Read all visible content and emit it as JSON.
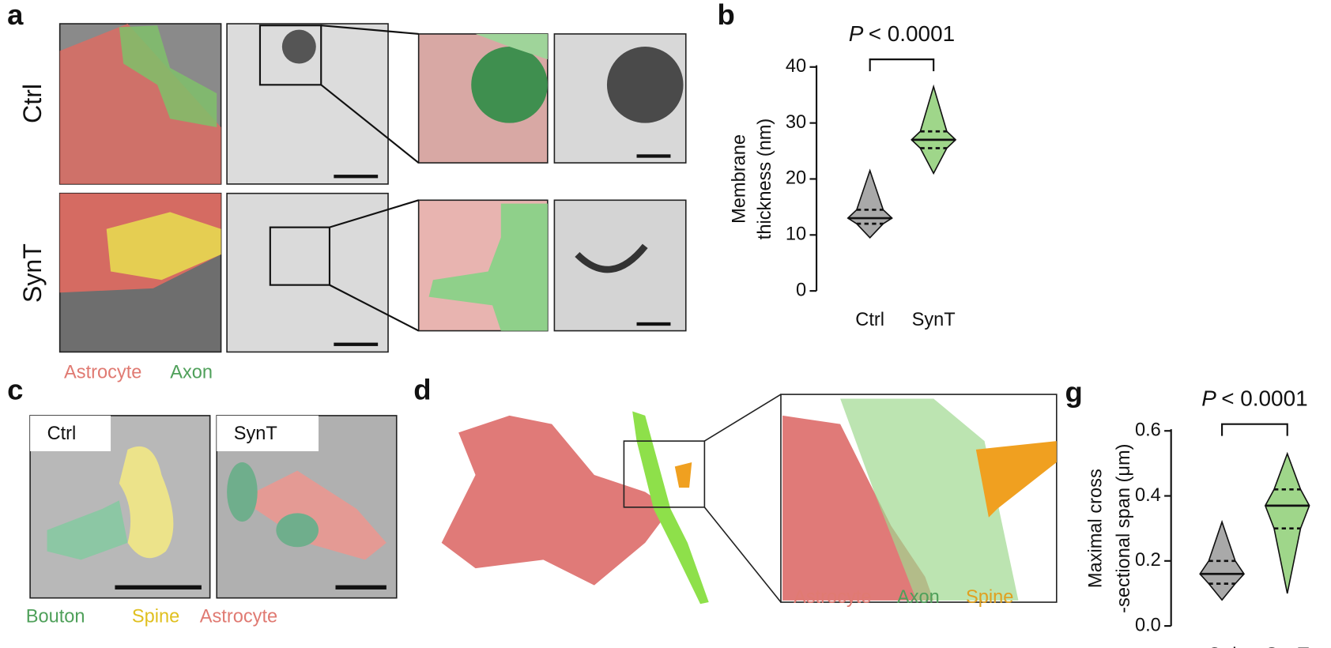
{
  "panel_labels": {
    "a": "a",
    "b": "b",
    "c": "c",
    "d": "d",
    "g": "g"
  },
  "panel_a": {
    "rows": [
      "Ctrl",
      "SynT"
    ],
    "legend": [
      "Astrocyte",
      "Axon"
    ]
  },
  "panel_c": {
    "images": [
      "Ctrl",
      "SynT"
    ],
    "legend": [
      "Bouton",
      "Spine",
      "Astrocyte"
    ]
  },
  "panel_d": {
    "legend": [
      "Astrocyte",
      "Axon",
      "Spine"
    ]
  },
  "chart_data": [
    {
      "type": "violin",
      "ylabel": [
        "Membrane",
        "thickness (nm)"
      ],
      "annotation_symbol": "P",
      "annotation_text": "< 0.0001",
      "categories": [
        "Ctrl",
        "SynT"
      ],
      "colors": [
        "#a9a9a9",
        "#9fd68a"
      ],
      "stats": [
        {
          "min": 9.5,
          "q1": 12,
          "median": 13,
          "q3": 14.5,
          "max": 21.5
        },
        {
          "min": 21,
          "q1": 25.5,
          "median": 27,
          "q3": 28.5,
          "max": 36.5
        }
      ],
      "ylim": [
        0,
        40
      ],
      "yticks": [
        0,
        10,
        20,
        30,
        40
      ]
    },
    {
      "type": "violin",
      "ylabel": [
        "Maximal cross",
        "-sectional span (μm)"
      ],
      "annotation_symbol": "P",
      "annotation_text": "< 0.0001",
      "categories": [
        "Ctrl",
        "SynT"
      ],
      "colors": [
        "#a9a9a9",
        "#9fd68a"
      ],
      "stats": [
        {
          "min": 0.08,
          "q1": 0.13,
          "median": 0.16,
          "q3": 0.2,
          "max": 0.32
        },
        {
          "min": 0.1,
          "q1": 0.3,
          "median": 0.37,
          "q3": 0.42,
          "max": 0.53
        }
      ],
      "ylim": [
        0,
        0.6
      ],
      "yticks": [
        {
          "value": 0,
          "label": "0.0"
        },
        0.2,
        0.4,
        0.6
      ]
    }
  ]
}
